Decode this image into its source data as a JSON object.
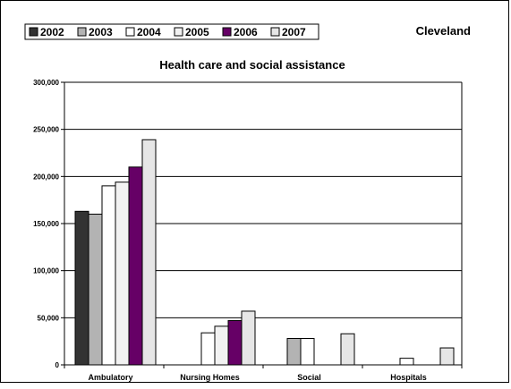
{
  "location": "Cleveland",
  "chart_data": {
    "type": "bar",
    "title": "Health care and social assistance",
    "categories": [
      "Ambulatory",
      "Nursing Homes",
      "Social",
      "Hospitals"
    ],
    "series": [
      {
        "name": "2002",
        "values": [
          163000,
          0,
          0,
          0
        ],
        "color": "#333333"
      },
      {
        "name": "2003",
        "values": [
          160000,
          0,
          28000,
          0
        ],
        "color": "#b3b3b3"
      },
      {
        "name": "2004",
        "values": [
          190000,
          34000,
          28000,
          7000
        ],
        "color": "#ffffff"
      },
      {
        "name": "2005",
        "values": [
          194000,
          41000,
          0,
          0
        ],
        "color": "#f2f2f2"
      },
      {
        "name": "2006",
        "values": [
          210000,
          47000,
          0,
          0
        ],
        "color": "#660066"
      },
      {
        "name": "2007",
        "values": [
          239000,
          57000,
          33000,
          18000
        ],
        "color": "#e6e6e6"
      }
    ],
    "ylim": [
      0,
      300000
    ],
    "yticks": [
      0,
      50000,
      100000,
      150000,
      200000,
      250000,
      300000
    ],
    "ytick_labels": [
      "0",
      "50,000",
      "100,000",
      "150,000",
      "200,000",
      "250,000",
      "300,000"
    ],
    "grid": true,
    "legend_position": "top-left"
  }
}
